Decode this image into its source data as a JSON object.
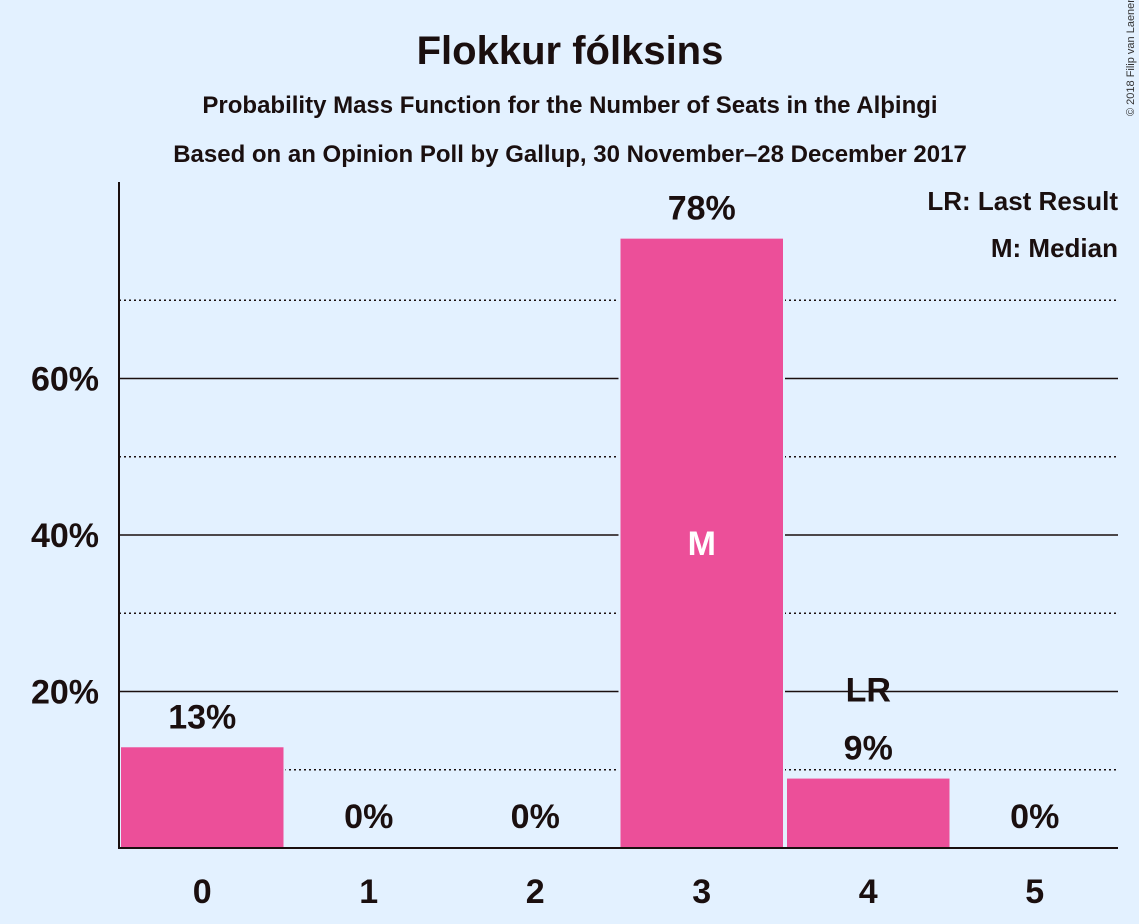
{
  "header": {
    "title": "Flokkur fólksins",
    "subtitle1": "Probability Mass Function for the Number of Seats in the Alþingi",
    "subtitle2": "Based on an Opinion Poll by Gallup, 30 November–28 December 2017"
  },
  "copyright": "© 2018 Filip van Laenen",
  "legend": {
    "last_result": "LR: Last Result",
    "median": "M: Median"
  },
  "colors": {
    "background": "#e3f1ff",
    "bar": "#ec4f99",
    "text": "#1a0f0f",
    "median_text": "#ffffff"
  },
  "chart_data": {
    "type": "bar",
    "categories": [
      "0",
      "1",
      "2",
      "3",
      "4",
      "5"
    ],
    "values": [
      13,
      0,
      0,
      78,
      9,
      0
    ],
    "value_labels": [
      "13%",
      "0%",
      "0%",
      "78%",
      "9%",
      "0%"
    ],
    "ylim": [
      0,
      85
    ],
    "yticks_major": [
      20,
      40,
      60
    ],
    "ytick_labels": [
      "20%",
      "40%",
      "60%"
    ],
    "yticks_minor": [
      10,
      30,
      50,
      70
    ],
    "median_category": "3",
    "median_marker": "M",
    "last_result_category": "4",
    "last_result_marker": "LR",
    "title": "Flokkur fólksins",
    "xlabel": "",
    "ylabel": ""
  }
}
